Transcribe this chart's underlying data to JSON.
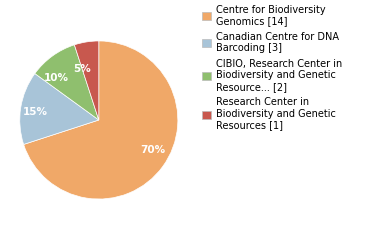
{
  "slices": [
    70,
    15,
    10,
    5
  ],
  "colors": [
    "#f0a868",
    "#a8c4d8",
    "#8fbf6e",
    "#c8584e"
  ],
  "labels": [
    "70%",
    "15%",
    "10%",
    "5%"
  ],
  "legend_labels": [
    "Centre for Biodiversity\nGenomics [14]",
    "Canadian Centre for DNA\nBarcoding [3]",
    "CIBIO, Research Center in\nBiodiversity and Genetic\nResource... [2]",
    "Research Center in\nBiodiversity and Genetic\nResources [1]"
  ],
  "label_fontsize": 7.5,
  "legend_fontsize": 7,
  "startangle": 90,
  "text_color": "white"
}
